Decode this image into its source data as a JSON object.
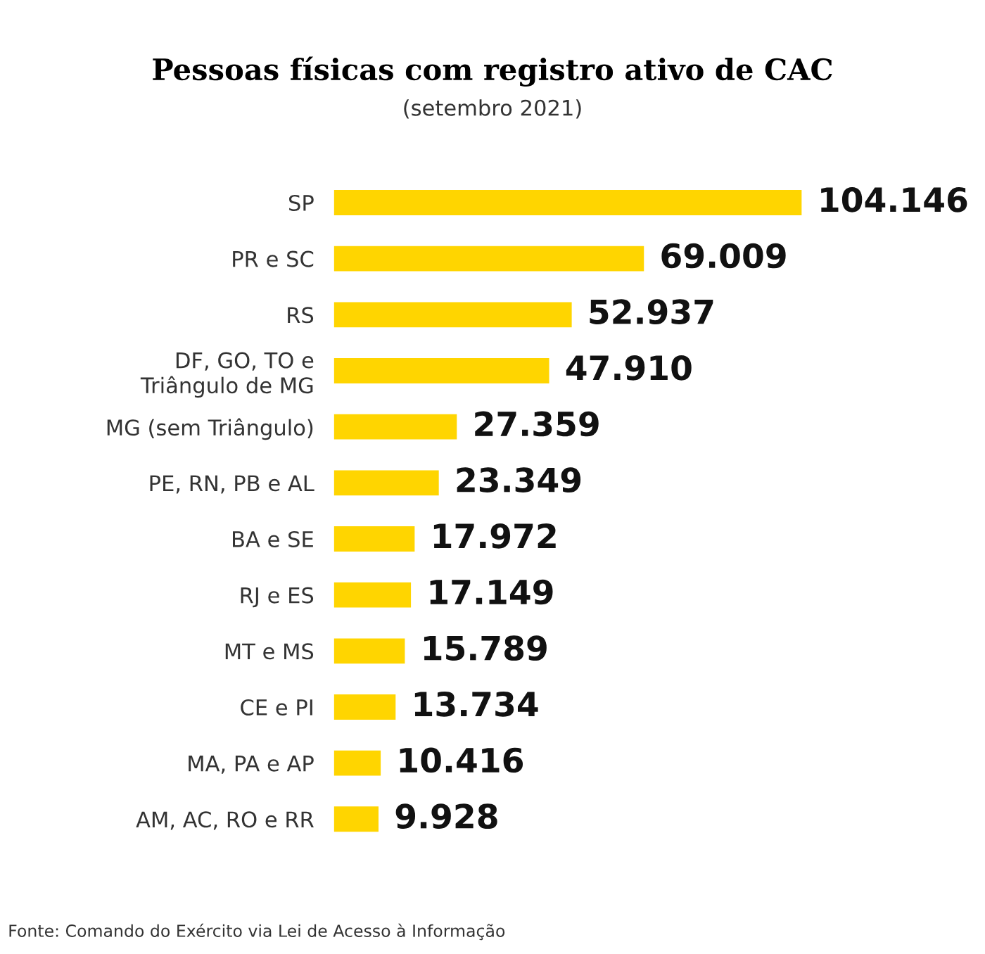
{
  "chart_data": {
    "type": "bar",
    "orientation": "horizontal",
    "title": "Pessoas físicas com registro ativo de CAC",
    "subtitle": "(setembro 2021)",
    "categories": [
      "SP",
      "PR e SC",
      "RS",
      "DF, GO, TO e\nTriângulo de MG",
      "MG (sem Triângulo)",
      "PE, RN, PB e AL",
      "BA e SE",
      "RJ e ES",
      "MT e MS",
      "CE e PI",
      "MA, PA e AP",
      "AM, AC, RO e RR"
    ],
    "values": [
      104146,
      69009,
      52937,
      47910,
      27359,
      23349,
      17972,
      17149,
      15789,
      13734,
      10416,
      9928
    ],
    "value_labels": [
      "104.146",
      "69.009",
      "52.937",
      "47.910",
      "27.359",
      "23.349",
      "17.972",
      "17.149",
      "15.789",
      "13.734",
      "10.416",
      "9.928"
    ],
    "color": "#ffd500",
    "tick_labels": "y",
    "grid": false,
    "legend": false,
    "annotations": [
      "Fonte: Comando do Exército via Lei de Acesso à Informação"
    ]
  }
}
